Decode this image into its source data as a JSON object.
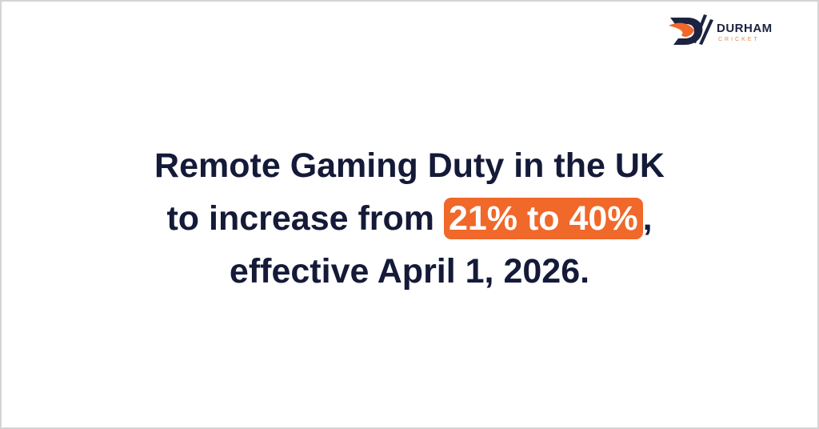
{
  "logo": {
    "name": "DURHAM",
    "sub": "CRICKET",
    "colors": {
      "navy": "#1b2340",
      "orange": "#f0682a"
    }
  },
  "headline": {
    "line1": "Remote Gaming Duty in the UK",
    "line2_prefix": "to increase from ",
    "line2_highlight": "21% to 40%",
    "line2_suffix": ",",
    "line3": "effective April 1, 2026."
  },
  "colors": {
    "text": "#141a38",
    "highlight": "#f0682a"
  }
}
